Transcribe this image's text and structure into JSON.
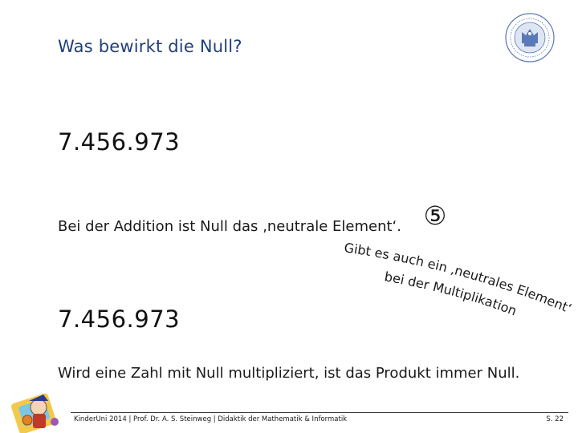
{
  "slide": {
    "title": "Was bewirkt die Null?",
    "number_top": "7.456.973",
    "addition_text": "Bei der Addition ist Null das ‚neutrale Element‘.",
    "circled_number": "⑤",
    "curved_line_1": "Gibt es auch ein ‚neutrales Element‘",
    "curved_line_2": "bei der Multiplikation?",
    "number_bottom": "7.456.973",
    "multiplication_text": "Wird eine Zahl mit Null multipliziert, ist das Produkt immer Null."
  },
  "footer": {
    "text": "KinderUni 2014 | Prof. Dr. A. S. Steinweg | Didaktik der Mathematik & Informatik",
    "page": "S. 22"
  },
  "colors": {
    "title": "#1f3f7a",
    "seal": "#5a79b8",
    "text": "#1a1a1a"
  },
  "icons": {
    "seal": "university-seal-icon",
    "mascot": "mascot-icon"
  }
}
